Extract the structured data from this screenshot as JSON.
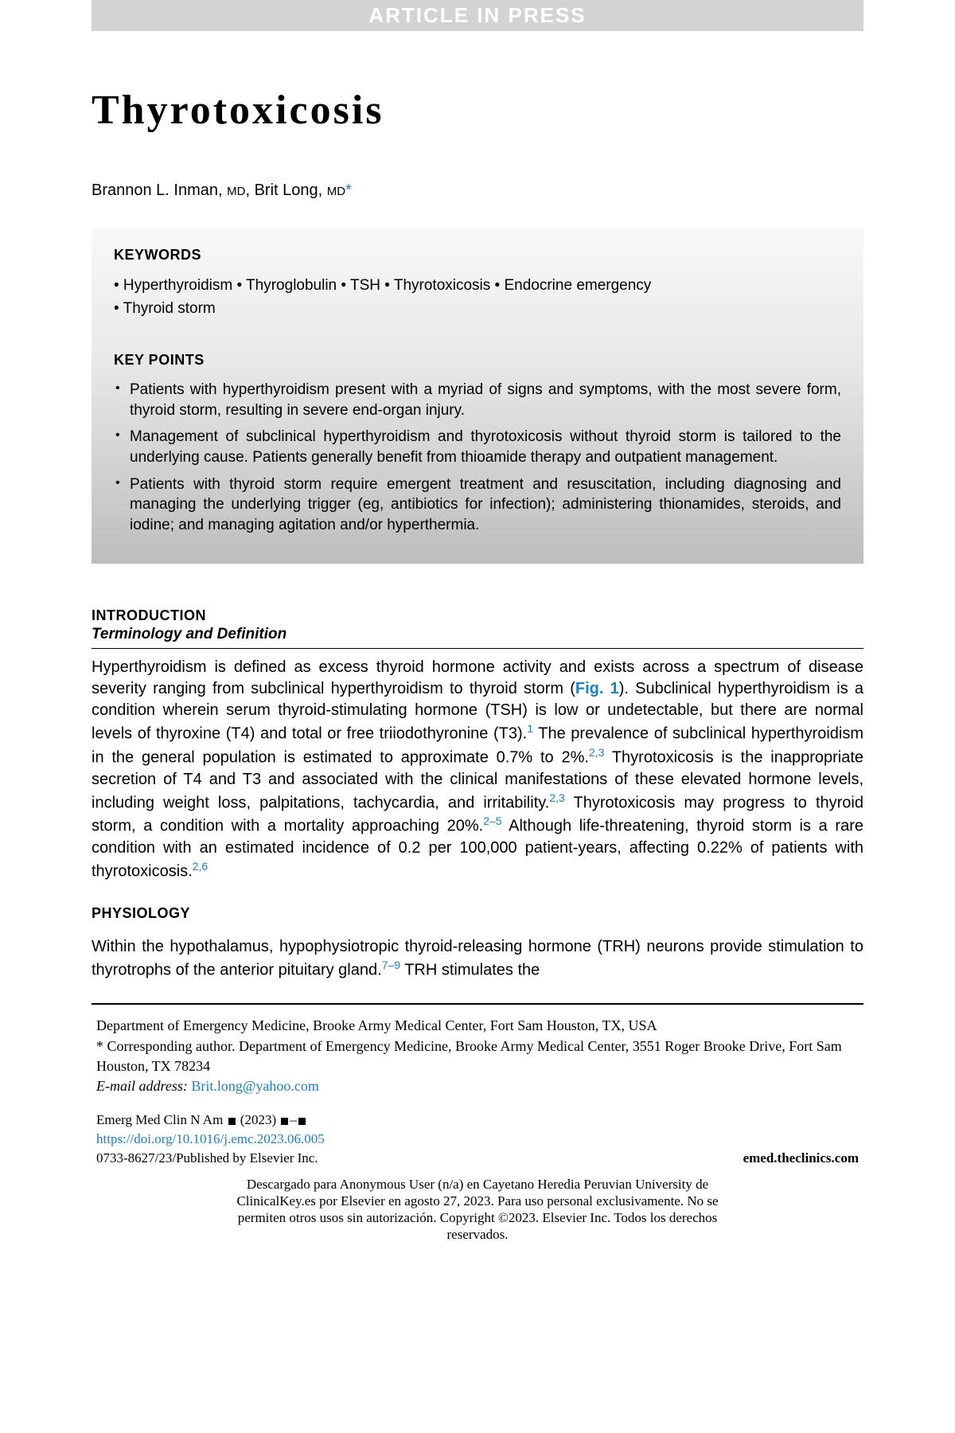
{
  "banner": "ARTICLE IN PRESS",
  "title": "Thyrotoxicosis",
  "authors": {
    "a1": "Brannon L. Inman, ",
    "md": "MD",
    "sep": ", ",
    "a2": "Brit Long, ",
    "star": "*"
  },
  "keywords": {
    "heading": "KEYWORDS",
    "items_line1": "• Hyperthyroidism • Thyroglobulin • TSH • Thyrotoxicosis • Endocrine emergency",
    "items_line2": "• Thyroid storm"
  },
  "keypoints": {
    "heading": "KEY POINTS",
    "items": [
      "Patients with hyperthyroidism present with a myriad of signs and symptoms, with the most severe form, thyroid storm, resulting in severe end-organ injury.",
      "Management of subclinical hyperthyroidism and thyrotoxicosis without thyroid storm is tailored to the underlying cause. Patients generally benefit from thioamide therapy and outpatient management.",
      "Patients with thyroid storm require emergent treatment and resuscitation, including diagnosing and managing the underlying trigger (eg, antibiotics for infection); administering thionamides, steroids, and iodine; and managing agitation and/or hyperthermia."
    ]
  },
  "intro": {
    "heading": "INTRODUCTION",
    "sub": "Terminology and Definition",
    "p1a": "Hyperthyroidism is defined as excess thyroid hormone activity and exists across a spectrum of disease severity ranging from subclinical hyperthyroidism to thyroid storm (",
    "figref": "Fig. 1",
    "p1b": "). Subclinical hyperthyroidism is a condition wherein serum thyroid-stimulating hormone (TSH) is low or undetectable, but there are normal levels of thyroxine (T4) and total or free triiodothyronine (T3).",
    "c1": "1",
    "p1c": " The prevalence of subclinical hyperthyroidism in the general population is estimated to approximate 0.7% to 2%.",
    "c2": "2,3",
    "p1d": " Thyrotoxicosis is the inappropriate secretion of T4 and T3 and associated with the clinical manifestations of these elevated hormone levels, including weight loss, palpitations, tachycardia, and irritability.",
    "c3": "2,3",
    "p1e": " Thyrotoxicosis may progress to thyroid storm, a condition with a mortality approaching 20%.",
    "c4": "2–5",
    "p1f": " Although life-threatening, thyroid storm is a rare condition with an estimated incidence of 0.2 per 100,000 patient-years, affecting 0.22% of patients with thyrotoxicosis.",
    "c5": "2,6"
  },
  "physiology": {
    "heading": "PHYSIOLOGY",
    "p1a": "Within the hypothalamus, hypophysiotropic thyroid-releasing hormone (TRH) neurons provide stimulation to thyrotrophs of the anterior pituitary gland.",
    "c1": "7–9",
    "p1b": " TRH stimulates the"
  },
  "affil": {
    "line1": "Department of Emergency Medicine, Brooke Army Medical Center, Fort Sam Houston, TX, USA",
    "line2": "* Corresponding author. Department of Emergency Medicine, Brooke Army Medical Center, 3551 Roger Brooke Drive, Fort Sam Houston, TX 78234",
    "email_label": "E-mail address: ",
    "email": "Brit.long@yahoo.com"
  },
  "pubinfo": {
    "journal_pre": "Emerg Med Clin N Am ",
    "year": " (2023) ",
    "doi": "https://doi.org/10.1016/j.emc.2023.06.005",
    "issn": "0733-8627/23/Published by Elsevier Inc.",
    "website": "emed.theclinics.com"
  },
  "downloadnotice": "Descargado para Anonymous User (n/a) en Cayetano Heredia Peruvian University de ClinicalKey.es por Elsevier en agosto 27, 2023. Para uso personal exclusivamente. No se permiten otros usos sin autorización. Copyright ©2023. Elsevier Inc. Todos los derechos reservados."
}
